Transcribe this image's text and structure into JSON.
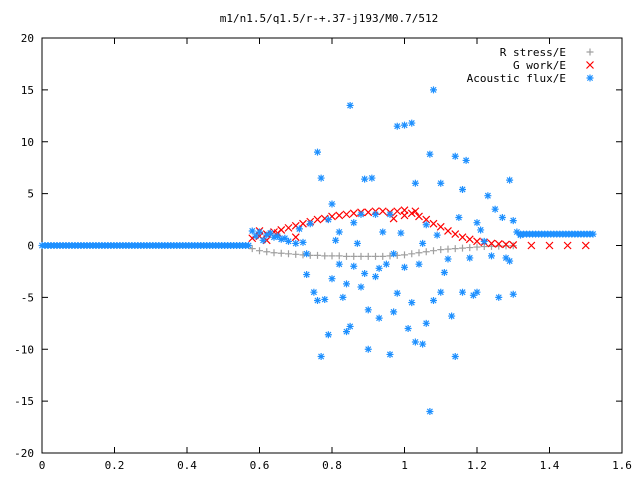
{
  "chart_data": {
    "type": "scatter",
    "title": "m1/n1.5/q1.5/r-+.37-j193/M0.7/512",
    "xlabel": "",
    "ylabel": "",
    "xlim": [
      0,
      1.6
    ],
    "ylim": [
      -20,
      20
    ],
    "x_ticks": [
      0,
      0.2,
      0.4,
      0.6,
      0.8,
      1,
      1.2,
      1.4,
      1.6
    ],
    "x_tick_labels": [
      "0",
      "0.2",
      "0.4",
      "0.6",
      "0.8",
      "1",
      "1.2",
      "1.4",
      "1.6"
    ],
    "y_ticks": [
      -20,
      -15,
      -10,
      -5,
      0,
      5,
      10,
      15,
      20
    ],
    "y_tick_labels": [
      "-20",
      "-15",
      "-10",
      "-5",
      "0",
      "5",
      "10",
      "15",
      "20"
    ],
    "grid": false,
    "legend_position": "top-right",
    "series": [
      {
        "name": "R stress/E",
        "marker": "plus",
        "color": "#a0a0a0",
        "points": [
          [
            0.58,
            -0.3
          ],
          [
            0.6,
            -0.5
          ],
          [
            0.62,
            -0.6
          ],
          [
            0.64,
            -0.7
          ],
          [
            0.66,
            -0.75
          ],
          [
            0.68,
            -0.8
          ],
          [
            0.7,
            -0.85
          ],
          [
            0.72,
            -0.9
          ],
          [
            0.74,
            -0.95
          ],
          [
            0.76,
            -0.95
          ],
          [
            0.78,
            -1.0
          ],
          [
            0.8,
            -1.0
          ],
          [
            0.82,
            -1.0
          ],
          [
            0.84,
            -1.05
          ],
          [
            0.86,
            -1.05
          ],
          [
            0.88,
            -1.05
          ],
          [
            0.9,
            -1.05
          ],
          [
            0.92,
            -1.05
          ],
          [
            0.94,
            -1.05
          ],
          [
            0.96,
            -1.0
          ],
          [
            0.98,
            -0.95
          ],
          [
            1.0,
            -0.9
          ],
          [
            1.02,
            -0.8
          ],
          [
            1.04,
            -0.7
          ],
          [
            1.06,
            -0.6
          ],
          [
            1.08,
            -0.5
          ],
          [
            1.1,
            -0.4
          ],
          [
            1.12,
            -0.35
          ],
          [
            1.14,
            -0.3
          ],
          [
            1.16,
            -0.25
          ],
          [
            1.18,
            -0.2
          ],
          [
            1.2,
            -0.15
          ],
          [
            1.22,
            -0.1
          ],
          [
            1.24,
            -0.08
          ],
          [
            1.26,
            -0.06
          ],
          [
            1.28,
            -0.04
          ],
          [
            1.3,
            -0.02
          ]
        ]
      },
      {
        "name": "G work/E",
        "marker": "cross",
        "color": "#ff0000",
        "points": [
          [
            0.58,
            0.7
          ],
          [
            0.6,
            0.9
          ],
          [
            0.62,
            1.1
          ],
          [
            0.64,
            1.3
          ],
          [
            0.66,
            1.5
          ],
          [
            0.68,
            1.7
          ],
          [
            0.7,
            1.9
          ],
          [
            0.72,
            2.1
          ],
          [
            0.74,
            2.3
          ],
          [
            0.76,
            2.5
          ],
          [
            0.78,
            2.6
          ],
          [
            0.8,
            2.8
          ],
          [
            0.82,
            2.9
          ],
          [
            0.84,
            3.0
          ],
          [
            0.86,
            3.1
          ],
          [
            0.88,
            3.2
          ],
          [
            0.9,
            3.2
          ],
          [
            0.92,
            3.3
          ],
          [
            0.94,
            3.3
          ],
          [
            0.96,
            3.2
          ],
          [
            0.98,
            3.3
          ],
          [
            1.0,
            3.4
          ],
          [
            1.02,
            3.1
          ],
          [
            1.04,
            2.8
          ],
          [
            1.06,
            2.5
          ],
          [
            1.08,
            2.1
          ],
          [
            1.1,
            1.8
          ],
          [
            1.12,
            1.4
          ],
          [
            1.14,
            1.1
          ],
          [
            1.16,
            0.8
          ],
          [
            1.18,
            0.6
          ],
          [
            1.2,
            0.4
          ],
          [
            1.22,
            0.3
          ],
          [
            1.24,
            0.2
          ],
          [
            1.26,
            0.15
          ],
          [
            1.28,
            0.1
          ],
          [
            1.3,
            0.05
          ],
          [
            1.35,
            0.0
          ],
          [
            1.4,
            0.0
          ],
          [
            1.45,
            0.0
          ],
          [
            1.5,
            0.0
          ],
          [
            0.6,
            1.4
          ],
          [
            0.65,
            1.2
          ],
          [
            0.7,
            0.8
          ],
          [
            0.62,
            0.5
          ],
          [
            0.97,
            2.6
          ],
          [
            1.0,
            2.9
          ],
          [
            1.03,
            3.3
          ]
        ]
      },
      {
        "name": "Acoustic flux/E",
        "marker": "star",
        "color": "#1e90ff",
        "points": [
          [
            0.58,
            1.4
          ],
          [
            0.6,
            1.3
          ],
          [
            0.62,
            1.0
          ],
          [
            0.64,
            0.8
          ],
          [
            0.66,
            0.6
          ],
          [
            0.68,
            0.4
          ],
          [
            0.7,
            0.2
          ],
          [
            0.59,
            0.9
          ],
          [
            0.61,
            0.5
          ],
          [
            0.63,
            1.2
          ],
          [
            0.65,
            0.9
          ],
          [
            0.67,
            0.7
          ],
          [
            0.71,
            1.6
          ],
          [
            0.72,
            0.3
          ],
          [
            0.73,
            -0.8
          ],
          [
            0.73,
            -2.8
          ],
          [
            0.74,
            2.1
          ],
          [
            0.75,
            -4.5
          ],
          [
            0.76,
            9.0
          ],
          [
            0.76,
            -5.3
          ],
          [
            0.77,
            6.5
          ],
          [
            0.77,
            -10.7
          ],
          [
            0.78,
            -5.2
          ],
          [
            0.79,
            -8.6
          ],
          [
            0.79,
            2.5
          ],
          [
            0.8,
            -3.2
          ],
          [
            0.8,
            4.0
          ],
          [
            0.81,
            0.5
          ],
          [
            0.82,
            -1.8
          ],
          [
            0.82,
            1.3
          ],
          [
            0.83,
            -5.0
          ],
          [
            0.84,
            -8.3
          ],
          [
            0.84,
            -3.7
          ],
          [
            0.85,
            13.5
          ],
          [
            0.85,
            -7.8
          ],
          [
            0.86,
            2.2
          ],
          [
            0.86,
            -2.0
          ],
          [
            0.87,
            0.2
          ],
          [
            0.88,
            -4.0
          ],
          [
            0.88,
            3.0
          ],
          [
            0.89,
            -2.7
          ],
          [
            0.89,
            6.4
          ],
          [
            0.9,
            -10.0
          ],
          [
            0.9,
            -6.2
          ],
          [
            0.91,
            6.5
          ],
          [
            0.92,
            -3.0
          ],
          [
            0.92,
            3.0
          ],
          [
            0.93,
            -2.2
          ],
          [
            0.93,
            -7.0
          ],
          [
            0.94,
            1.3
          ],
          [
            0.95,
            -1.8
          ],
          [
            0.96,
            -10.5
          ],
          [
            0.96,
            3.0
          ],
          [
            0.97,
            -6.4
          ],
          [
            0.97,
            -0.8
          ],
          [
            0.98,
            11.5
          ],
          [
            0.98,
            -4.6
          ],
          [
            0.99,
            1.2
          ],
          [
            1.0,
            -2.1
          ],
          [
            1.0,
            11.6
          ],
          [
            1.01,
            -8.0
          ],
          [
            1.02,
            11.8
          ],
          [
            1.02,
            -5.5
          ],
          [
            1.03,
            6.0
          ],
          [
            1.03,
            -9.3
          ],
          [
            1.04,
            -1.8
          ],
          [
            1.05,
            -9.5
          ],
          [
            1.05,
            0.2
          ],
          [
            1.06,
            -7.5
          ],
          [
            1.06,
            2.0
          ],
          [
            1.07,
            8.8
          ],
          [
            1.07,
            -16.0
          ],
          [
            1.08,
            15.0
          ],
          [
            1.08,
            -5.3
          ],
          [
            1.09,
            1.0
          ],
          [
            1.1,
            -4.5
          ],
          [
            1.1,
            6.0
          ],
          [
            1.11,
            -2.6
          ],
          [
            1.12,
            -1.3
          ],
          [
            1.13,
            -6.8
          ],
          [
            1.14,
            8.6
          ],
          [
            1.14,
            -10.7
          ],
          [
            1.15,
            2.7
          ],
          [
            1.16,
            5.4
          ],
          [
            1.16,
            -4.5
          ],
          [
            1.17,
            8.2
          ],
          [
            1.18,
            -1.2
          ],
          [
            1.19,
            -4.8
          ],
          [
            1.2,
            2.2
          ],
          [
            1.2,
            -4.5
          ],
          [
            1.21,
            1.5
          ],
          [
            1.22,
            0.4
          ],
          [
            1.23,
            4.8
          ],
          [
            1.24,
            -1.0
          ],
          [
            1.25,
            3.5
          ],
          [
            1.26,
            -5.0
          ],
          [
            1.27,
            2.7
          ],
          [
            1.28,
            -1.2
          ],
          [
            1.29,
            6.3
          ],
          [
            1.29,
            -1.5
          ],
          [
            1.3,
            2.4
          ],
          [
            1.3,
            -4.7
          ],
          [
            1.31,
            1.3
          ],
          [
            1.32,
            1.0
          ]
        ]
      }
    ],
    "baseline_flux": {
      "left": {
        "x_from": 0,
        "x_to": 0.57,
        "y": 0
      },
      "right": {
        "x_from": 1.32,
        "x_to": 1.52,
        "y": 1.1
      }
    }
  }
}
